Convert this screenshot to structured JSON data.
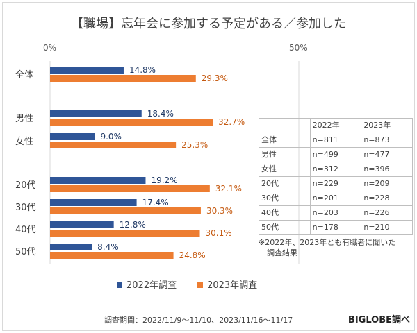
{
  "chart_data": {
    "type": "bar",
    "orientation": "horizontal",
    "title": "【職場】忘年会に参加する予定がある／参加した",
    "categories": [
      "全体",
      "男性",
      "女性",
      "20代",
      "30代",
      "40代",
      "50代"
    ],
    "series": [
      {
        "name": "2022年調査",
        "color": "#2f5597",
        "values": [
          14.8,
          18.4,
          9.0,
          19.2,
          17.4,
          12.8,
          8.4
        ]
      },
      {
        "name": "2023年調査",
        "color": "#ed7d31",
        "values": [
          29.3,
          32.7,
          25.3,
          32.1,
          30.3,
          30.1,
          24.8
        ]
      }
    ],
    "xlim": [
      0,
      50
    ],
    "tick_labels": [
      "0%",
      "50%"
    ],
    "legend": "bottom",
    "grid": true
  },
  "table": {
    "header": [
      "",
      "2022年",
      "2023年"
    ],
    "rows": [
      [
        "全体",
        "n=811",
        "n=873"
      ],
      [
        "男性",
        "n=499",
        "n=477"
      ],
      [
        "女性",
        "n=312",
        "n=396"
      ],
      [
        "20代",
        "n=229",
        "n=209"
      ],
      [
        "30代",
        "n=201",
        "n=228"
      ],
      [
        "40代",
        "n=203",
        "n=226"
      ],
      [
        "50代",
        "n=178",
        "n=210"
      ]
    ],
    "note_line1": "※2022年、2023年とも有職者に聞いた",
    "note_line2": "調査結果"
  },
  "footer": "調査期間：2022/11/9～11/10、2023/11/16～11/17",
  "brand": "BIGLOBE調べ"
}
